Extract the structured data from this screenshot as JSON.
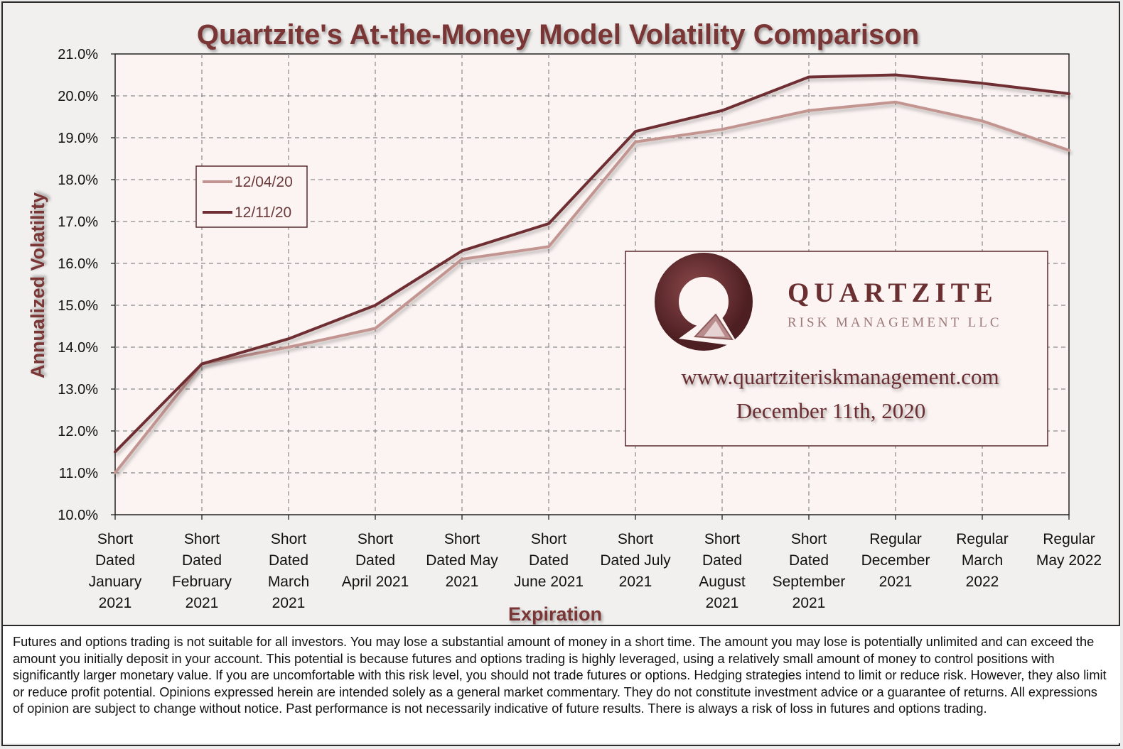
{
  "chart_data": {
    "type": "line",
    "title": "Quartzite's At-the-Money Model Volatility Comparison",
    "xlabel": "Expiration",
    "ylabel": "Annualized Volatility",
    "ylim": [
      10.0,
      21.0
    ],
    "ytick_labels": [
      "10.0%",
      "11.0%",
      "12.0%",
      "13.0%",
      "14.0%",
      "15.0%",
      "16.0%",
      "17.0%",
      "18.0%",
      "19.0%",
      "20.0%",
      "21.0%"
    ],
    "categories": [
      [
        "Short",
        "Dated",
        "January",
        "2021"
      ],
      [
        "Short",
        "Dated",
        "February",
        "2021"
      ],
      [
        "Short",
        "Dated",
        "March",
        "2021"
      ],
      [
        "Short",
        "Dated",
        "April 2021"
      ],
      [
        "Short",
        "Dated May",
        "2021"
      ],
      [
        "Short",
        "Dated",
        "June 2021"
      ],
      [
        "Short",
        "Dated July",
        "2021"
      ],
      [
        "Short",
        "Dated",
        "August",
        "2021"
      ],
      [
        "Short",
        "Dated",
        "September",
        "2021"
      ],
      [
        "Regular",
        "December",
        "2021"
      ],
      [
        "Regular",
        "March",
        "2022"
      ],
      [
        "Regular",
        "May 2022"
      ]
    ],
    "grid": true,
    "legend_position": "upper-left",
    "series": [
      {
        "name": "12/04/20",
        "color": "#c39591",
        "values": [
          11.0,
          13.6,
          14.0,
          14.45,
          16.1,
          16.4,
          18.9,
          19.2,
          19.65,
          19.85,
          19.4,
          18.7
        ]
      },
      {
        "name": "12/11/20",
        "color": "#6e2e33",
        "values": [
          11.5,
          13.6,
          14.2,
          15.0,
          16.3,
          16.95,
          19.15,
          19.65,
          20.45,
          20.5,
          20.3,
          20.05
        ]
      }
    ]
  },
  "watermark": {
    "company": "QUARTZITE",
    "subtitle": "RISK MANAGEMENT LLC",
    "url": "www.quartziteriskmanagement.com",
    "date": "December 11th, 2020"
  },
  "colors": {
    "plot_background": "#fcf4f3",
    "title": "#7a3535",
    "grid": "#8a8a8a"
  },
  "disclaimer": "Futures and options trading is not suitable for all investors. You may lose a substantial amount of money in a short time. The amount you may lose is potentially unlimited and can exceed the amount you initially deposit in your account. This potential is because futures and options trading is highly leveraged, using a relatively small amount of money to control positions with significantly larger monetary value. If you are uncomfortable with this risk level, you should not trade futures or options. Hedging strategies intend to limit or reduce risk. However, they also limit or reduce profit potential. Opinions expressed herein are intended solely as a general market commentary. They do not constitute investment advice or a guarantee of returns. All expressions of opinion are subject to change without notice. Past performance is not necessarily indicative of future results. There is always a risk of loss in futures and options trading."
}
